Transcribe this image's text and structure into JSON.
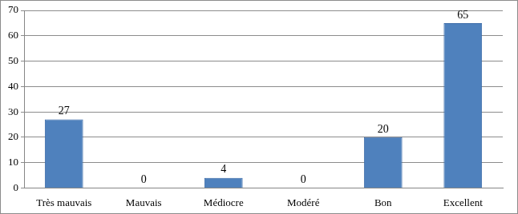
{
  "chart_data": {
    "type": "bar",
    "categories": [
      "Très mauvais",
      "Mauvais",
      "Médiocre",
      "Modéré",
      "Bon",
      "Excellent"
    ],
    "values": [
      27,
      0,
      4,
      0,
      20,
      65
    ],
    "color": "#4f81bd",
    "ylim": [
      0,
      70
    ],
    "yticks": [
      0,
      10,
      20,
      30,
      40,
      50,
      60,
      70
    ],
    "grid": true,
    "data_labels": true
  }
}
